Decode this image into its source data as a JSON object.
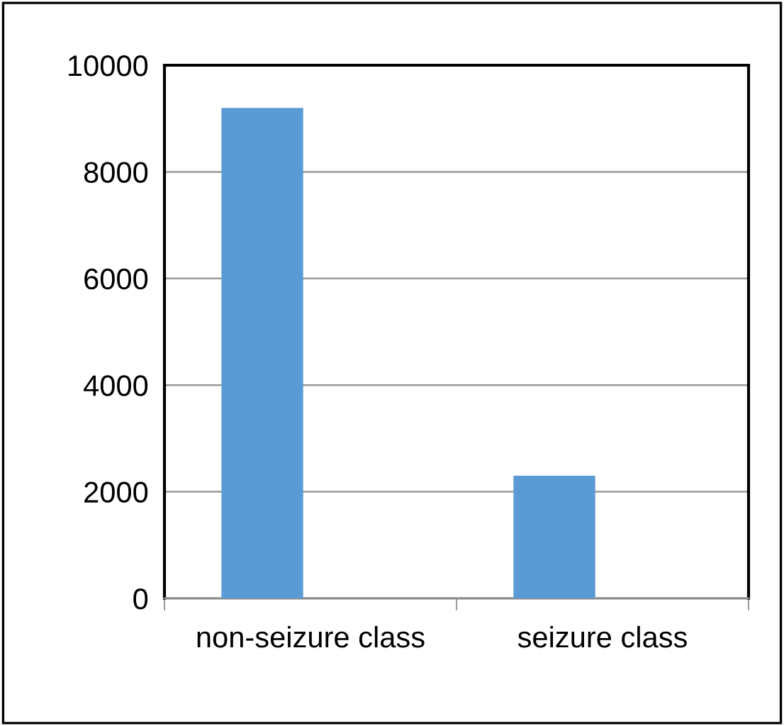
{
  "chart_data": {
    "type": "bar",
    "categories": [
      "non-seizure class",
      "seizure class"
    ],
    "series": [
      {
        "color": "#5b9bd5",
        "values": [
          9200,
          2300
        ]
      }
    ],
    "ylim": [
      0,
      10000
    ],
    "yticks": [
      0,
      2000,
      4000,
      6000,
      8000,
      10000
    ],
    "grid": "y"
  }
}
